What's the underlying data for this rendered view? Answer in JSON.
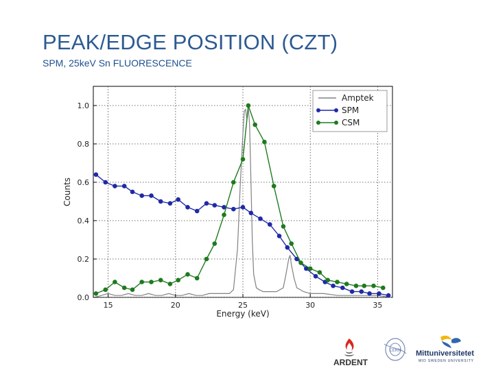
{
  "slide": {
    "title": "PEAK/EDGE POSITION (CZT)",
    "subtitle": "SPM, 25keV Sn FLUORESCENCE"
  },
  "colors": {
    "title": "#2c5a92",
    "amptek": "#808080",
    "spm": "#1f2aa6",
    "csm": "#1e7a1e"
  },
  "logos": {
    "ardent": "ARDENT",
    "miun_main": "Mittuniversitetet",
    "miun_sub": "MID SWEDEN UNIVERSITY",
    "cern": "CERN"
  },
  "chart_data": {
    "type": "line",
    "xlabel": "Energy (keV)",
    "ylabel": "Counts",
    "xlim": [
      13.9,
      36.1
    ],
    "ylim": [
      0.0,
      1.1
    ],
    "xticks": [
      15,
      20,
      25,
      30,
      35
    ],
    "yticks": [
      0.0,
      0.2,
      0.4,
      0.6,
      0.8,
      1.0
    ],
    "ytick_labels": [
      "0.0",
      "0.2",
      "0.4",
      "0.6",
      "0.8",
      "1.0"
    ],
    "grid": true,
    "legend_position": "top-right",
    "series": [
      {
        "name": "Amptek",
        "style": "line",
        "x": [
          14.0,
          14.5,
          15.0,
          15.5,
          16.0,
          16.5,
          17.0,
          17.5,
          18.0,
          18.5,
          19.0,
          19.5,
          20.0,
          20.5,
          21.0,
          21.5,
          22.0,
          22.5,
          23.0,
          23.5,
          24.0,
          24.3,
          24.6,
          24.8,
          25.0,
          25.1,
          25.2,
          25.3,
          25.4,
          25.5,
          25.6,
          25.7,
          25.8,
          26.0,
          26.2,
          26.5,
          27.0,
          27.5,
          28.0,
          28.2,
          28.4,
          28.5,
          28.6,
          28.8,
          29.0,
          29.5,
          30.0,
          31.0,
          32.0,
          33.0,
          34.0,
          35.0,
          36.0
        ],
        "y": [
          0.0,
          0.01,
          0.02,
          0.01,
          0.01,
          0.02,
          0.01,
          0.01,
          0.02,
          0.01,
          0.01,
          0.02,
          0.01,
          0.01,
          0.02,
          0.01,
          0.01,
          0.02,
          0.02,
          0.02,
          0.02,
          0.04,
          0.25,
          0.58,
          0.85,
          0.97,
          0.98,
          0.93,
          0.99,
          0.9,
          0.6,
          0.3,
          0.12,
          0.05,
          0.04,
          0.03,
          0.03,
          0.03,
          0.05,
          0.12,
          0.2,
          0.22,
          0.17,
          0.1,
          0.05,
          0.03,
          0.02,
          0.02,
          0.01,
          0.01,
          0.01,
          0.01,
          0.0
        ]
      },
      {
        "name": "SPM",
        "style": "line-marker",
        "x": [
          14.1,
          14.8,
          15.5,
          16.2,
          16.8,
          17.5,
          18.2,
          18.9,
          19.6,
          20.2,
          20.9,
          21.6,
          22.3,
          22.9,
          23.6,
          24.3,
          25.0,
          25.6,
          26.3,
          27.0,
          27.7,
          28.3,
          29.0,
          29.7,
          30.4,
          31.1,
          31.7,
          32.4,
          33.1,
          33.8,
          34.4,
          35.1,
          35.8
        ],
        "y": [
          0.64,
          0.6,
          0.58,
          0.58,
          0.55,
          0.53,
          0.53,
          0.5,
          0.49,
          0.51,
          0.47,
          0.45,
          0.49,
          0.48,
          0.47,
          0.46,
          0.47,
          0.44,
          0.41,
          0.38,
          0.32,
          0.26,
          0.2,
          0.15,
          0.11,
          0.08,
          0.06,
          0.05,
          0.03,
          0.03,
          0.02,
          0.02,
          0.01
        ]
      },
      {
        "name": "CSM",
        "style": "line-marker",
        "x": [
          14.1,
          14.8,
          15.5,
          16.2,
          16.8,
          17.5,
          18.2,
          18.9,
          19.6,
          20.2,
          20.9,
          21.6,
          22.3,
          22.9,
          23.6,
          24.3,
          25.0,
          25.4,
          25.9,
          26.6,
          27.3,
          28.0,
          28.6,
          29.3,
          30.0,
          30.7,
          31.3,
          32.0,
          32.7,
          33.4,
          34.0,
          34.7,
          35.4
        ],
        "y": [
          0.02,
          0.04,
          0.08,
          0.05,
          0.04,
          0.08,
          0.08,
          0.09,
          0.07,
          0.09,
          0.12,
          0.1,
          0.2,
          0.28,
          0.43,
          0.6,
          0.72,
          1.0,
          0.9,
          0.81,
          0.58,
          0.37,
          0.28,
          0.18,
          0.15,
          0.13,
          0.09,
          0.08,
          0.07,
          0.06,
          0.06,
          0.06,
          0.05
        ]
      }
    ]
  }
}
